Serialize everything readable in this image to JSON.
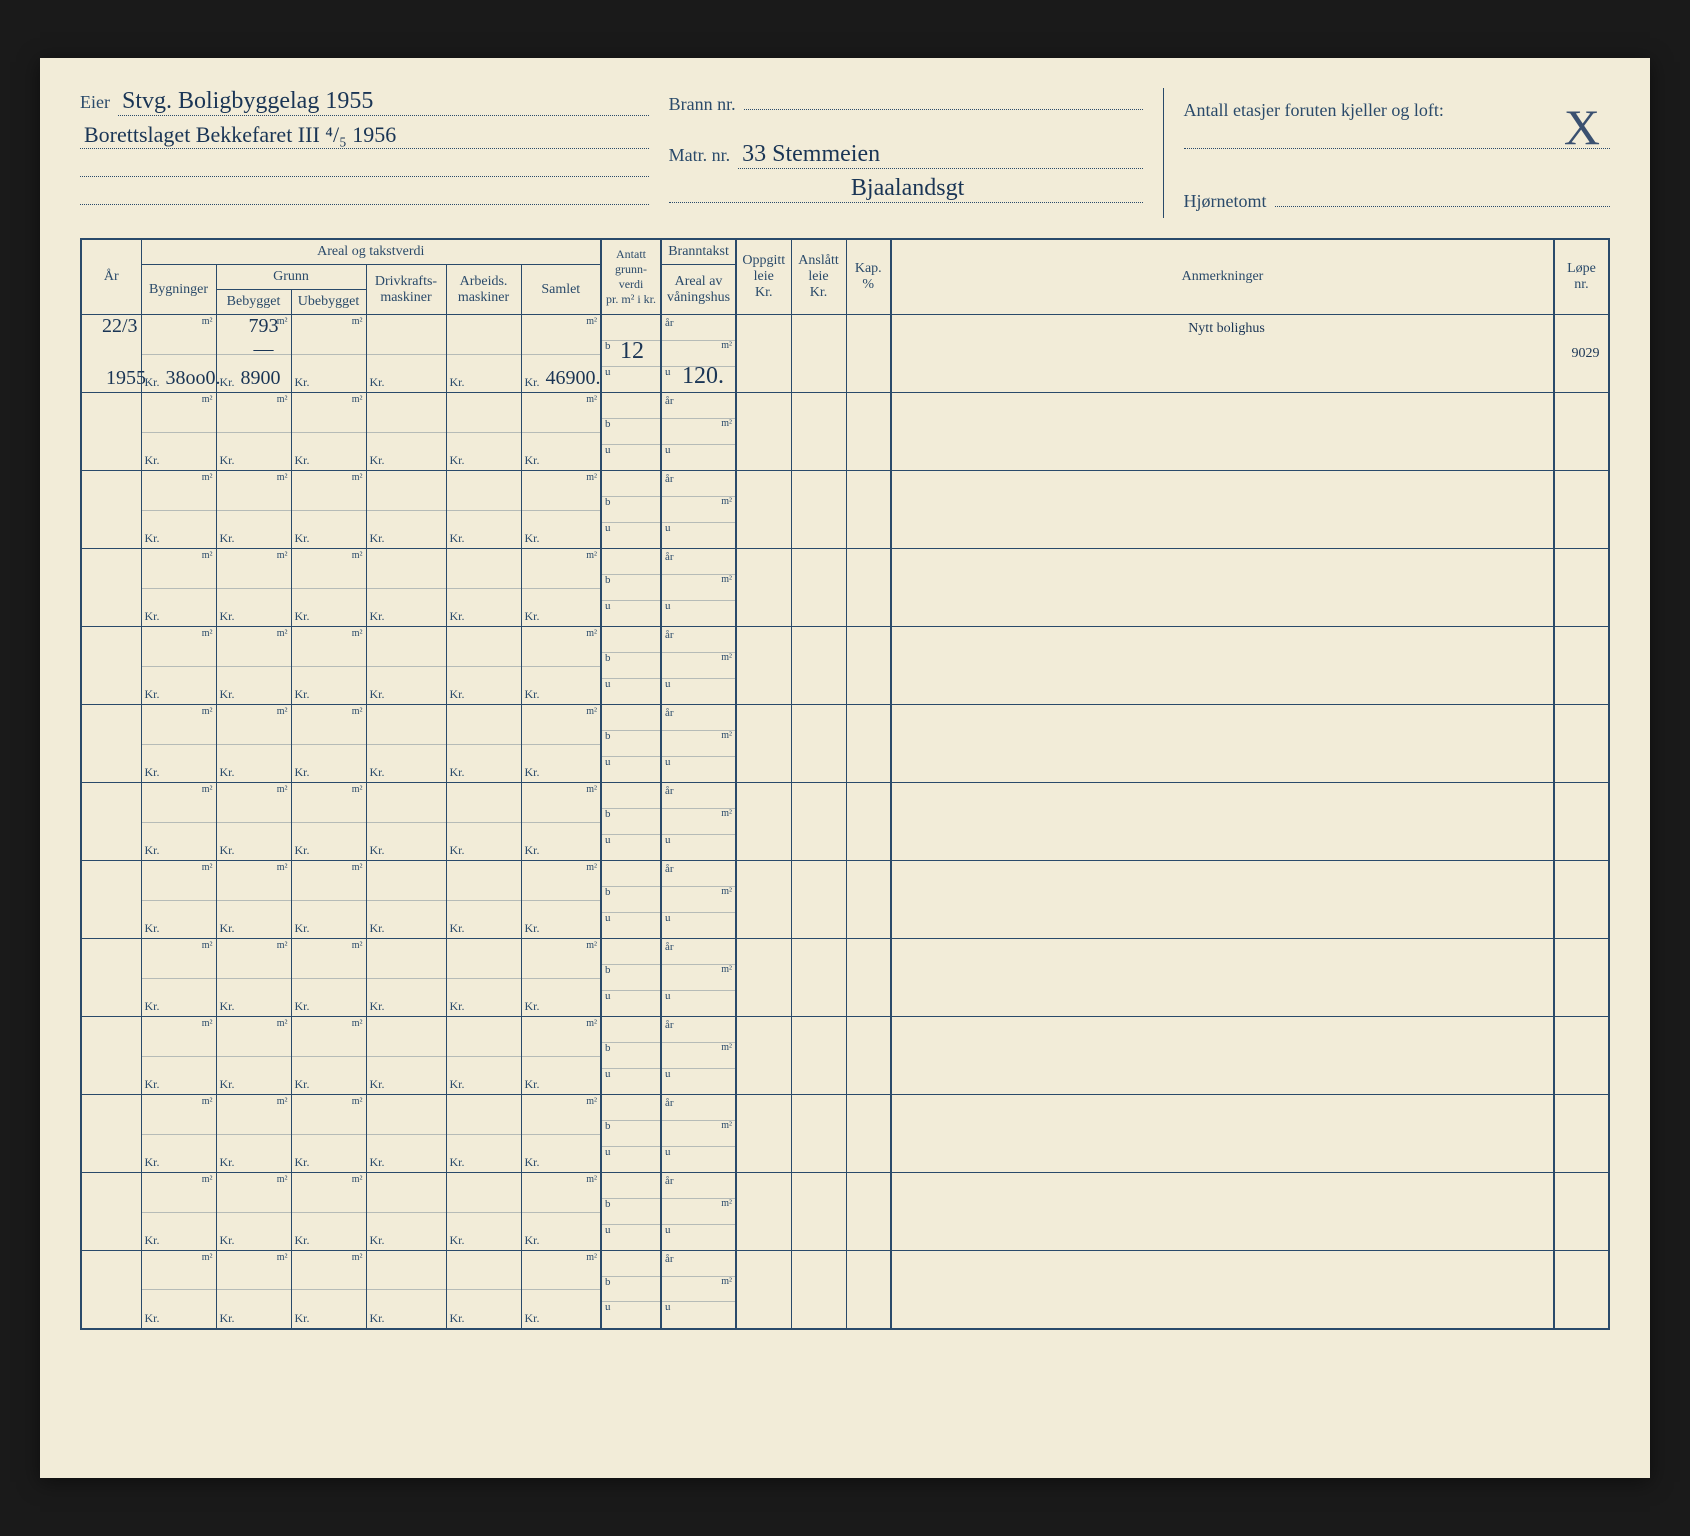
{
  "header": {
    "eier_label": "Eier",
    "eier_value_1": "Stvg. Boligbyggelag 1955",
    "eier_value_2": "Borettslaget Bekkefaret III ⁴/₅ 1956",
    "brann_label": "Brann nr.",
    "brann_value": "",
    "matr_label": "Matr. nr.",
    "matr_value_1": "33 Stemmeien",
    "matr_value_2": "Bjaalandsgt",
    "etasjer_label": "Antall etasjer foruten kjeller og loft:",
    "hjornetomt_label": "Hjørnetomt",
    "corner_mark": "X"
  },
  "columns": {
    "ar": "År",
    "areal_group": "Areal og takstverdi",
    "bygninger": "Bygninger",
    "grunn": "Grunn",
    "bebygget": "Bebygget",
    "ubebygget": "Ubebygget",
    "drivkraft": "Drivkrafts-\nmaskiner",
    "arbeids": "Arbeids.\nmaskiner",
    "samlet": "Samlet",
    "antatt": "Antatt\ngrunn-\nverdi\npr. m² i kr.",
    "branntakst": "Branntakst",
    "areal_av": "Areal av\nvåningshus",
    "oppgitt": "Oppgitt\nleie\nKr.",
    "anslatt": "Anslått\nleie\nKr.",
    "kap": "Kap.\n%",
    "anmerkninger": "Anmerkninger",
    "lope": "Løpe\nnr."
  },
  "units": {
    "m2": "m²",
    "kr": "Kr.",
    "ar_sub": "år",
    "b_sub": "b",
    "u_sub": "u"
  },
  "row1": {
    "ar_top": "22/3",
    "ar_bot": "1955",
    "byg_kr": "38oo0.",
    "beb_m2": "793 —",
    "beb_kr": "8900",
    "sam_kr": "46900.",
    "ant_b": "12",
    "brann_u": "120.",
    "anm": "Nytt bolighus",
    "lope": "9029"
  },
  "num_blank_rows": 12
}
